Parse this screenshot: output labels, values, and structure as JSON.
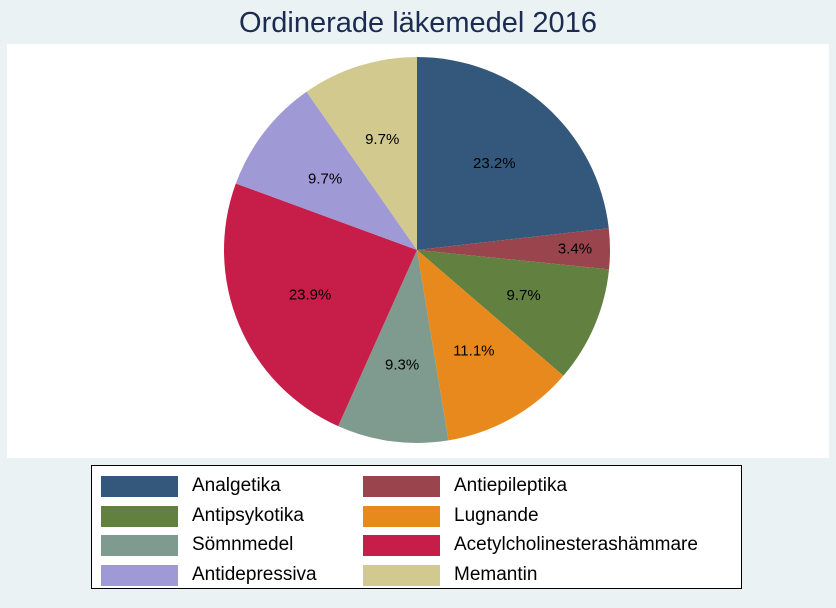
{
  "chart_data": {
    "type": "pie",
    "title": "Ordinerade läkemedel 2016",
    "legend": "bottom",
    "slices": [
      {
        "name": "Analgetika",
        "value": 23.2,
        "label": "23.2%",
        "color": "#34587b"
      },
      {
        "name": "Antiepileptika",
        "value": 3.4,
        "label": "3.4%",
        "color": "#9a454e"
      },
      {
        "name": "Antipsykotika",
        "value": 9.7,
        "label": "9.7%",
        "color": "#62803f"
      },
      {
        "name": "Lugnande",
        "value": 11.1,
        "label": "11.1%",
        "color": "#e8891d"
      },
      {
        "name": "Sömnmedel",
        "value": 9.3,
        "label": "9.3%",
        "color": "#7f9a8f"
      },
      {
        "name": "Acetylcholinesterashämmare",
        "value": 23.9,
        "label": "23.9%",
        "color": "#c61e48"
      },
      {
        "name": "Antidepressiva",
        "value": 9.7,
        "label": "9.7%",
        "color": "#9f9ad6"
      },
      {
        "name": "Memantin",
        "value": 9.7,
        "label": "9.7%",
        "color": "#d1c98d"
      }
    ]
  }
}
